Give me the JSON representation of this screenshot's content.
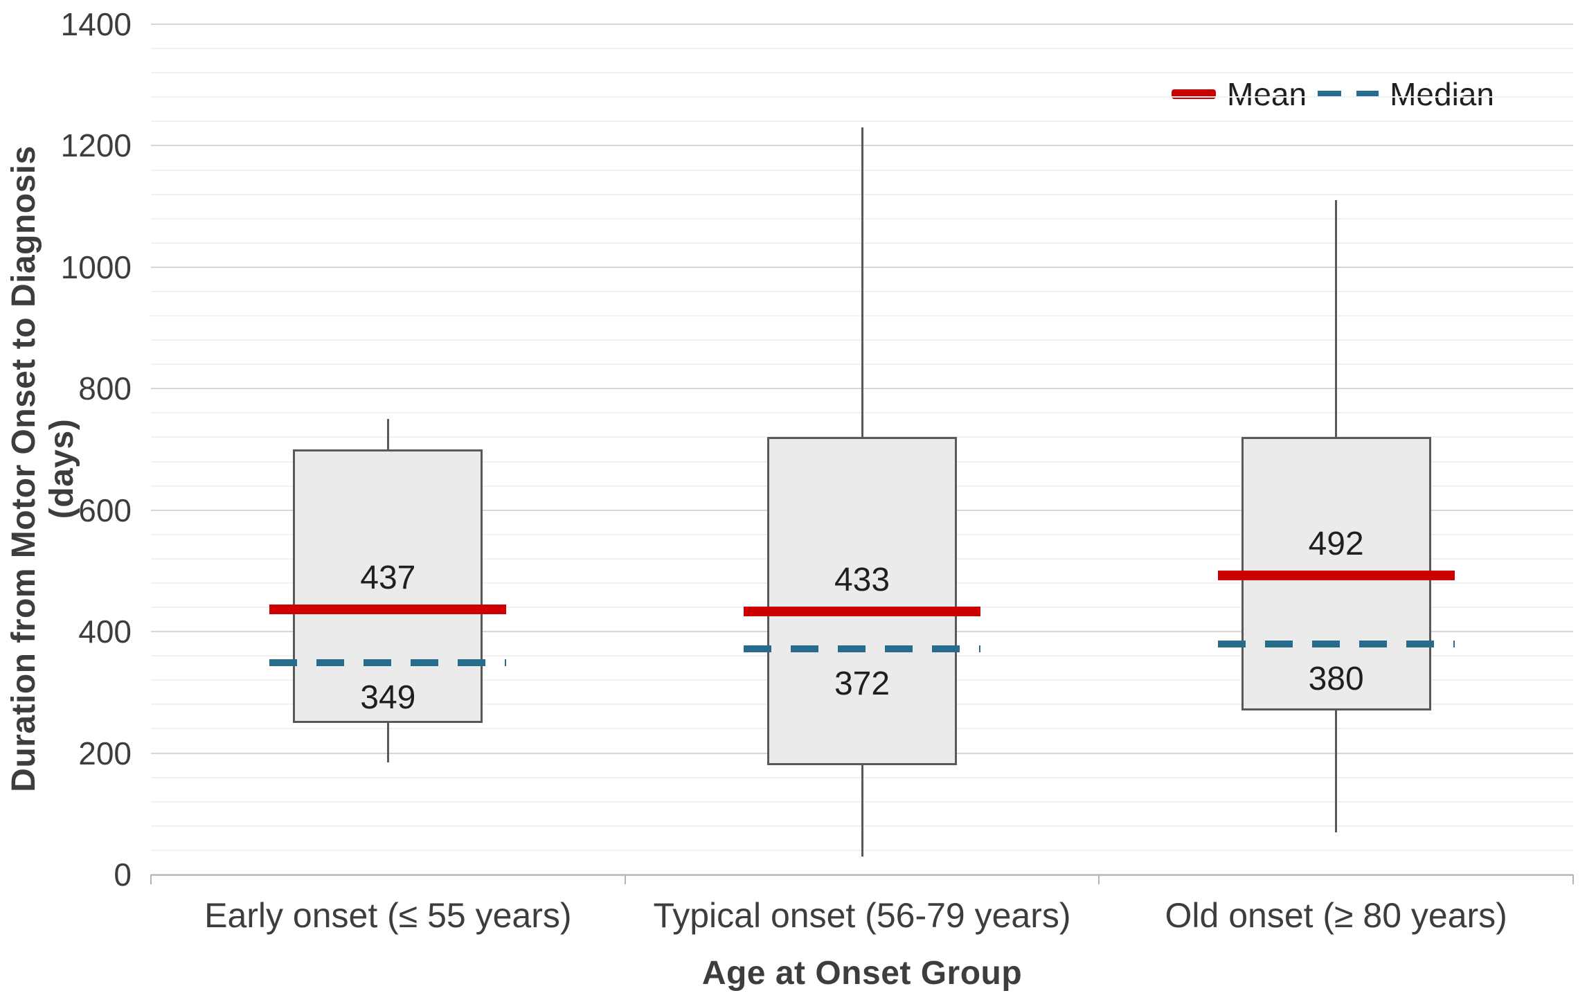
{
  "chart_data": {
    "type": "box",
    "title": "",
    "xlabel": "Age at Onset Group",
    "ylabel": "Duration from Motor Onset to Diagnosis (days)",
    "ylim": [
      0,
      1400
    ],
    "y_major_unit": 200,
    "y_minor_unit": 40,
    "y_tick_labels": [
      "0",
      "200",
      "400",
      "600",
      "800",
      "1000",
      "1200",
      "1400"
    ],
    "grid": "horizontal, major and faint minor lines, no vertical gridlines",
    "legend_position": "top-right",
    "categories": [
      "Early onset (≤ 55 years)",
      "Typical onset (56-79 years)",
      "Old onset (≥ 80 years)"
    ],
    "series": [
      {
        "category": "Early onset (≤ 55 years)",
        "mean": 437,
        "median": 349,
        "q1": 250,
        "q3": 700,
        "whisker_low": 185,
        "whisker_high": 750,
        "mean_label": "437",
        "median_label": "349"
      },
      {
        "category": "Typical onset (56-79 years)",
        "mean": 433,
        "median": 372,
        "q1": 180,
        "q3": 720,
        "whisker_low": 30,
        "whisker_high": 1230,
        "mean_label": "433",
        "median_label": "372"
      },
      {
        "category": "Old onset (≥ 80 years)",
        "mean": 492,
        "median": 380,
        "q1": 270,
        "q3": 720,
        "whisker_low": 70,
        "whisker_high": 1110,
        "mean_label": "492",
        "median_label": "380"
      }
    ],
    "legend": {
      "entries": [
        {
          "label": "Mean",
          "style": "thick solid line",
          "color": "#cc0000"
        },
        {
          "label": "Median",
          "style": "dashed line",
          "color": "#276b8d"
        }
      ]
    }
  },
  "style": {
    "mean_color": "#cc0000",
    "median_color": "#276b8d",
    "box_fill": "#ebebeb",
    "box_border": "#595959",
    "grid_major": "#d6d6d6",
    "grid_minor": "#f1f1f1",
    "axis_line": "#c2c2c2"
  }
}
